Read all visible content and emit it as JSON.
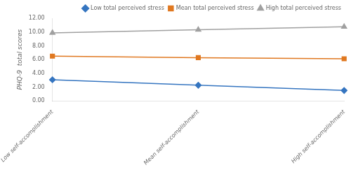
{
  "chart_data": {
    "type": "line",
    "categories": [
      "Low self-accomplishment",
      "Mean self-accomplishment",
      "High self-accomplishment"
    ],
    "series": [
      {
        "name": "Low total perceived stress",
        "color": "#3575c0",
        "marker": "diamond",
        "values": [
          3.08,
          2.28,
          1.52
        ]
      },
      {
        "name": "Mean total perceived stress",
        "color": "#e07820",
        "marker": "square",
        "values": [
          6.5,
          6.28,
          6.12
        ]
      },
      {
        "name": "High total perceived stress",
        "color": "#a0a0a0",
        "marker": "triangle",
        "values": [
          9.88,
          10.32,
          10.75
        ]
      }
    ],
    "y_label": "PHQ-9  total scores",
    "ylim": [
      0.0,
      12.0
    ],
    "yticks": [
      {
        "value": 0,
        "label": "0.00"
      },
      {
        "value": 2,
        "label": "2.00"
      },
      {
        "value": 4,
        "label": "4.00"
      },
      {
        "value": 6,
        "label": "6.00"
      },
      {
        "value": 8,
        "label": "8.00"
      },
      {
        "value": 10,
        "label": "10.00"
      },
      {
        "value": 12,
        "label": "12.00"
      }
    ],
    "grid": false,
    "legend": "upper right"
  }
}
